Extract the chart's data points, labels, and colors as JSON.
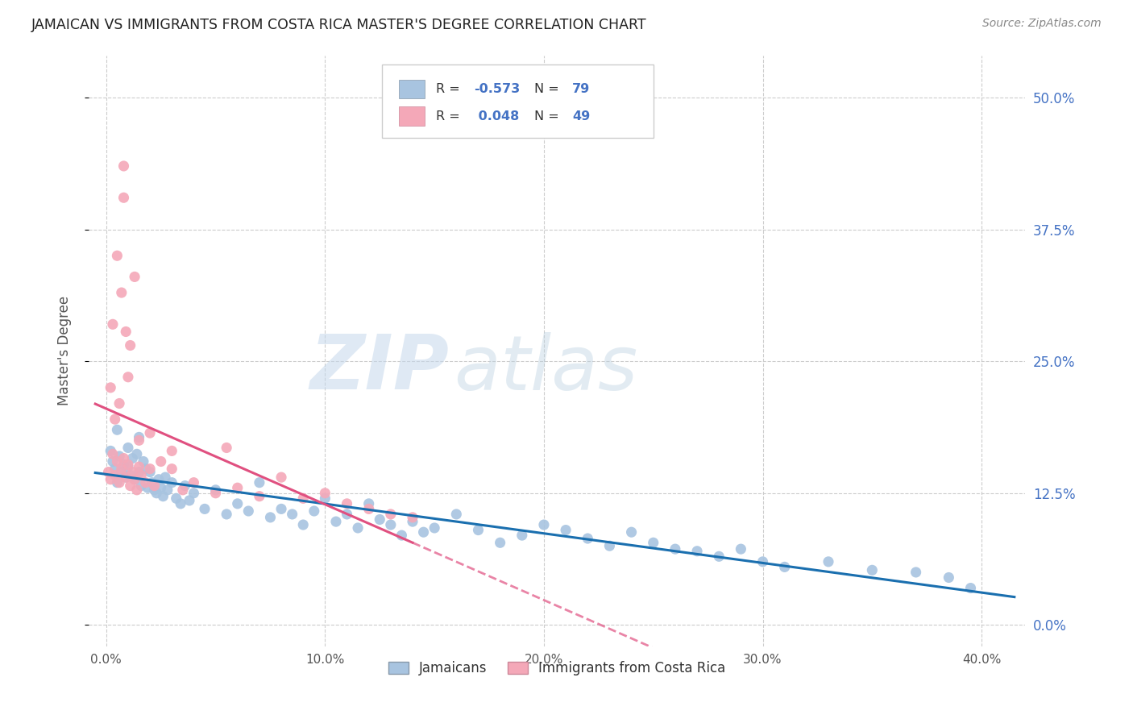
{
  "title": "JAMAICAN VS IMMIGRANTS FROM COSTA RICA MASTER'S DEGREE CORRELATION CHART",
  "source": "Source: ZipAtlas.com",
  "ylabel": "Master's Degree",
  "ytick_labels": [
    "0.0%",
    "12.5%",
    "25.0%",
    "37.5%",
    "50.0%"
  ],
  "ytick_values": [
    0.0,
    12.5,
    25.0,
    37.5,
    50.0
  ],
  "xtick_labels": [
    "0.0%",
    "10.0%",
    "20.0%",
    "30.0%",
    "40.0%"
  ],
  "xtick_values": [
    0.0,
    10.0,
    20.0,
    30.0,
    40.0
  ],
  "xlim": [
    -0.8,
    42.0
  ],
  "ylim": [
    -2.0,
    54.0
  ],
  "blue_color": "#a8c4e0",
  "pink_color": "#f4a8b8",
  "blue_line_color": "#1a6faf",
  "pink_line_color": "#e05080",
  "blue_R": -0.573,
  "blue_N": 79,
  "pink_R": 0.048,
  "pink_N": 49,
  "legend_label_blue": "Jamaicans",
  "legend_label_pink": "Immigrants from Costa Rica",
  "watermark_zip": "ZIP",
  "watermark_atlas": "atlas",
  "blue_points_x": [
    0.2,
    0.3,
    0.4,
    0.5,
    0.6,
    0.7,
    0.8,
    0.9,
    1.0,
    1.0,
    1.1,
    1.2,
    1.3,
    1.4,
    1.5,
    1.6,
    1.7,
    1.8,
    1.9,
    2.0,
    2.1,
    2.2,
    2.3,
    2.4,
    2.5,
    2.6,
    2.7,
    2.8,
    3.0,
    3.2,
    3.4,
    3.6,
    3.8,
    4.0,
    4.5,
    5.0,
    5.5,
    6.0,
    6.5,
    7.0,
    7.5,
    8.0,
    8.5,
    9.0,
    9.5,
    10.0,
    10.5,
    11.0,
    11.5,
    12.0,
    12.5,
    13.0,
    13.5,
    14.0,
    14.5,
    15.0,
    16.0,
    17.0,
    18.0,
    19.0,
    20.0,
    21.0,
    22.0,
    23.0,
    24.0,
    25.0,
    26.0,
    27.0,
    28.0,
    29.0,
    30.0,
    31.0,
    33.0,
    35.0,
    37.0,
    38.5,
    39.5,
    0.5,
    1.5
  ],
  "blue_points_y": [
    16.5,
    15.5,
    14.8,
    13.5,
    16.0,
    14.5,
    15.2,
    14.0,
    16.8,
    15.0,
    14.2,
    15.8,
    13.8,
    16.2,
    14.5,
    13.2,
    15.5,
    14.8,
    13.0,
    14.5,
    13.5,
    12.8,
    12.5,
    13.8,
    13.0,
    12.2,
    14.0,
    12.8,
    13.5,
    12.0,
    11.5,
    13.2,
    11.8,
    12.5,
    11.0,
    12.8,
    10.5,
    11.5,
    10.8,
    13.5,
    10.2,
    11.0,
    10.5,
    9.5,
    10.8,
    12.0,
    9.8,
    10.5,
    9.2,
    11.5,
    10.0,
    9.5,
    8.5,
    9.8,
    8.8,
    9.2,
    10.5,
    9.0,
    7.8,
    8.5,
    9.5,
    9.0,
    8.2,
    7.5,
    8.8,
    7.8,
    7.2,
    7.0,
    6.5,
    7.2,
    6.0,
    5.5,
    6.0,
    5.2,
    5.0,
    4.5,
    3.5,
    18.5,
    17.8
  ],
  "pink_points_x": [
    0.1,
    0.2,
    0.3,
    0.4,
    0.5,
    0.6,
    0.7,
    0.8,
    0.9,
    1.0,
    1.1,
    1.2,
    1.3,
    1.4,
    1.5,
    1.6,
    1.8,
    2.0,
    2.2,
    2.5,
    3.0,
    3.5,
    4.0,
    5.0,
    6.0,
    7.0,
    8.0,
    9.0,
    10.0,
    11.0,
    12.0,
    13.0,
    14.0,
    0.3,
    0.5,
    0.7,
    0.9,
    1.1,
    1.3,
    0.2,
    0.4,
    0.6,
    1.0,
    1.5,
    2.0,
    3.0,
    0.8,
    0.8,
    5.5
  ],
  "pink_points_y": [
    14.5,
    13.8,
    16.2,
    14.2,
    15.5,
    13.5,
    14.8,
    15.8,
    14.0,
    15.2,
    13.2,
    14.5,
    13.8,
    12.8,
    15.0,
    14.2,
    13.5,
    14.8,
    13.2,
    15.5,
    14.8,
    12.8,
    13.5,
    12.5,
    13.0,
    12.2,
    14.0,
    12.0,
    12.5,
    11.5,
    11.0,
    10.5,
    10.2,
    28.5,
    35.0,
    31.5,
    27.8,
    26.5,
    33.0,
    22.5,
    19.5,
    21.0,
    23.5,
    17.5,
    18.2,
    16.5,
    40.5,
    43.5,
    16.8
  ],
  "pink_line_x_solid_end": 14.0,
  "pink_line_x_dashed_end": 40.5
}
